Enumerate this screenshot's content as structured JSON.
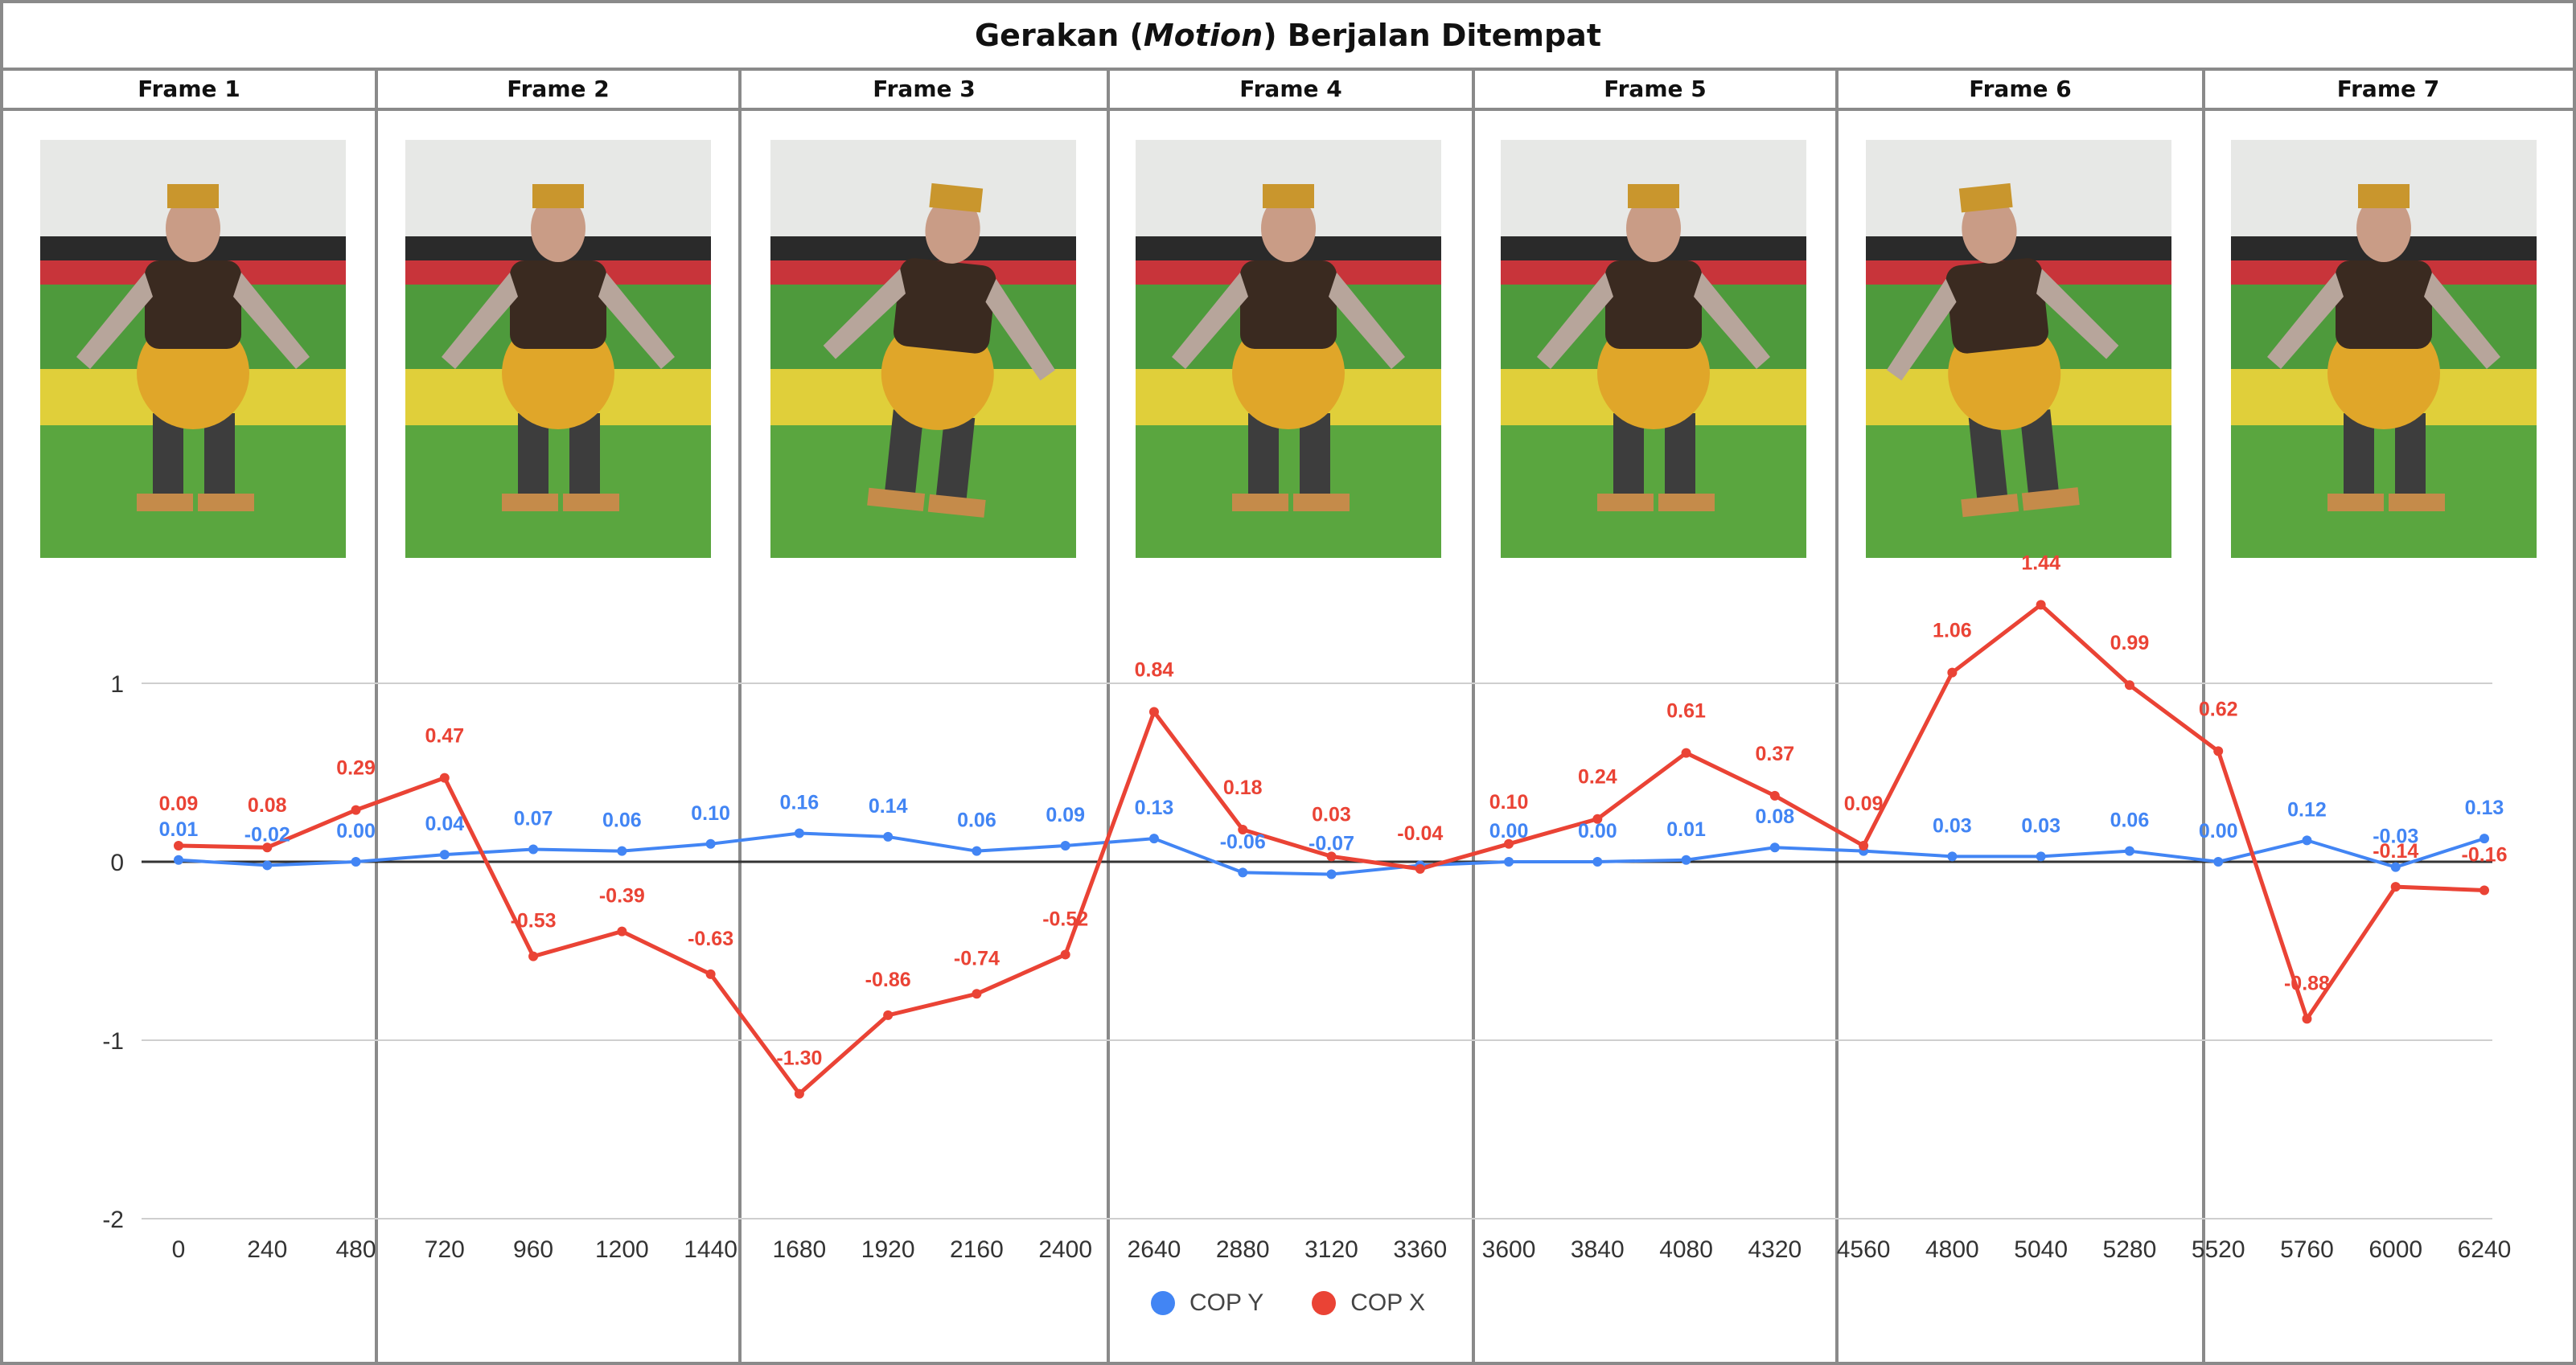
{
  "title": {
    "prefix": "Gerakan (",
    "italic": "Motion",
    "suffix": ") Berjalan Ditempat"
  },
  "frames": [
    "Frame 1",
    "Frame 2",
    "Frame 3",
    "Frame 4",
    "Frame 5",
    "Frame 6",
    "Frame 7"
  ],
  "colors": {
    "cop_y": "#4285f4",
    "cop_x": "#ea4335",
    "frame_border": "#8a8a8a"
  },
  "chart_data": {
    "type": "line",
    "x": [
      0,
      240,
      480,
      720,
      960,
      1200,
      1440,
      1680,
      1920,
      2160,
      2400,
      2640,
      2880,
      3120,
      3360,
      3600,
      3840,
      4080,
      4320,
      4560,
      4800,
      5040,
      5280,
      5520,
      5760,
      6000,
      6240
    ],
    "xticks": [
      0,
      240,
      480,
      720,
      960,
      1200,
      1440,
      1680,
      1920,
      2160,
      2400,
      2640,
      2880,
      3120,
      3360,
      3600,
      3840,
      4080,
      4320,
      4560,
      4800,
      5040,
      5280,
      5520,
      5760,
      6000,
      6240
    ],
    "yticks": [
      1,
      0,
      -1,
      -2
    ],
    "ylim": [
      -2,
      1.5
    ],
    "grid": true,
    "legend": "bottom-center",
    "series": [
      {
        "name": "COP Y",
        "color": "#4285f4",
        "values": [
          0.01,
          -0.02,
          0.0,
          0.04,
          0.07,
          0.06,
          0.1,
          0.16,
          0.14,
          0.06,
          0.09,
          0.13,
          -0.06,
          -0.07,
          -0.02,
          0.0,
          0.0,
          0.01,
          0.08,
          0.06,
          0.03,
          0.03,
          0.06,
          0.0,
          0.12,
          -0.03,
          0.13
        ],
        "labels": [
          "0.01",
          "-0.02",
          "0.00",
          "0.04",
          "0.07",
          "0.06",
          "0.10",
          "0.16",
          "0.14",
          "0.06",
          "0.09",
          "0.13",
          "-0.06",
          "-0.07",
          "",
          "0.00",
          "0.00",
          "0.01",
          "0.08",
          "",
          "0.03",
          "0.03",
          "0.06",
          "0.00",
          "0.12",
          "-0.03",
          "0.13"
        ]
      },
      {
        "name": "COP X",
        "color": "#ea4335",
        "values": [
          0.09,
          0.08,
          0.29,
          0.47,
          -0.53,
          -0.39,
          -0.63,
          -1.3,
          -0.86,
          -0.74,
          -0.52,
          0.84,
          0.18,
          0.03,
          -0.04,
          0.1,
          0.24,
          0.61,
          0.37,
          0.09,
          1.06,
          1.44,
          0.99,
          0.62,
          -0.88,
          -0.14,
          -0.16
        ],
        "labels": [
          "0.09",
          "0.08",
          "0.29",
          "0.47",
          "-0.53",
          "-0.39",
          "-0.63",
          "-1.30",
          "-0.86",
          "-0.74",
          "-0.52",
          "0.84",
          "0.18",
          "0.03",
          "-0.04",
          "0.10",
          "0.24",
          "0.61",
          "0.37",
          "0.09",
          "1.06",
          "1.44",
          "0.99",
          "0.62",
          "-0.88",
          "-0.14",
          "-0.16"
        ]
      }
    ]
  }
}
